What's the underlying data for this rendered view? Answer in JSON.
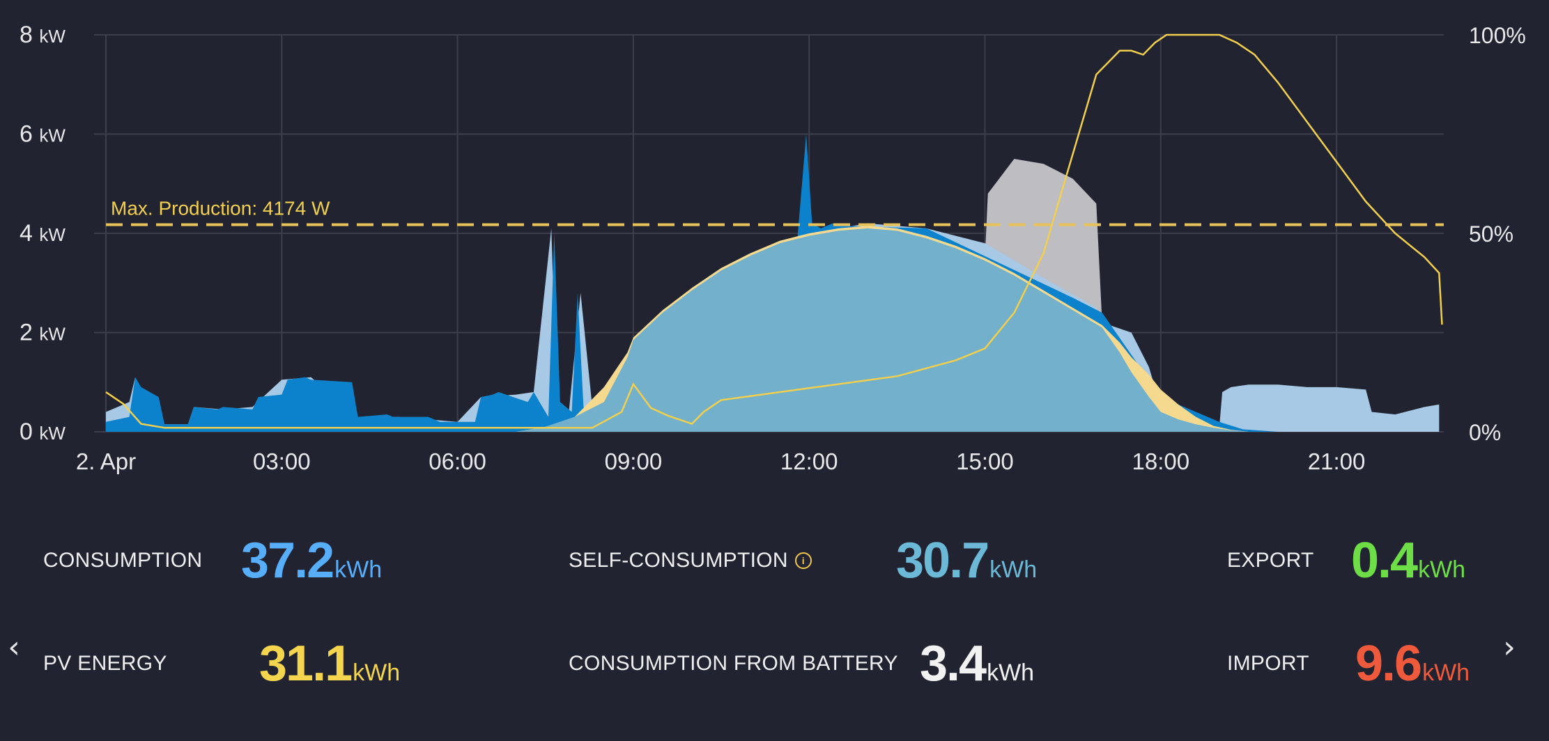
{
  "chart_data": {
    "type": "area",
    "title": "",
    "max_line": {
      "label": "Max. Production: 4174 W",
      "value": 4.174
    },
    "y_left": {
      "unit": "kW",
      "ticks": [
        0,
        2,
        4,
        6,
        8
      ],
      "labels": [
        "0",
        "2",
        "4",
        "6",
        "8"
      ],
      "ylim": [
        0,
        8
      ]
    },
    "y_right": {
      "ticks": [
        "0%",
        "50%",
        "100%"
      ],
      "ylim": [
        0,
        100
      ]
    },
    "x_ticks": [
      "2. Apr",
      "03:00",
      "06:00",
      "09:00",
      "12:00",
      "15:00",
      "18:00",
      "21:00"
    ],
    "x_tick_hours": [
      0,
      3,
      6,
      9,
      12,
      15,
      18,
      21
    ],
    "xlim_hours": [
      0,
      22.83
    ],
    "grid": true,
    "series": [
      {
        "key": "grid_import",
        "color": "#0c82cc",
        "hours": [
          0.0,
          0.4,
          0.5,
          0.6,
          0.75,
          0.9,
          1.0,
          1.4,
          1.5,
          1.9,
          2.0,
          2.5,
          2.6,
          3.0,
          3.1,
          3.4,
          3.5,
          4.2,
          4.3,
          4.8,
          4.9,
          5.5,
          5.7,
          6.3,
          6.4,
          6.6,
          6.7,
          7.2,
          7.3,
          7.5,
          7.55,
          7.65,
          7.75,
          7.95,
          8.05,
          8.15,
          8.3,
          8.5,
          8.7,
          9.0,
          9.5,
          10.0,
          11.0,
          11.8,
          11.95,
          12.05,
          12.2,
          12.4,
          12.6,
          14.0,
          16.5,
          17.0,
          18.0,
          19.0,
          19.4,
          20.0,
          21.0,
          22.0,
          22.75
        ],
        "kw": [
          0.2,
          0.3,
          1.1,
          0.9,
          0.8,
          0.7,
          0.15,
          0.15,
          0.5,
          0.45,
          0.5,
          0.45,
          0.7,
          0.75,
          1.05,
          1.1,
          1.05,
          1.0,
          0.3,
          0.35,
          0.3,
          0.3,
          0.2,
          0.2,
          0.7,
          0.75,
          0.8,
          0.6,
          0.8,
          0.4,
          0.3,
          4.0,
          0.6,
          0.4,
          2.8,
          0.5,
          0.3,
          0.3,
          0.5,
          1.0,
          2.3,
          2.7,
          3.3,
          3.9,
          6.0,
          4.2,
          4.1,
          4.2,
          4.15,
          4.1,
          2.7,
          2.4,
          0.7,
          0.2,
          0.05,
          0.0,
          0.0,
          0.0,
          0.0
        ]
      },
      {
        "key": "consumption",
        "color": "#a8c9e6",
        "hours": [
          0.0,
          0.2,
          0.4,
          0.5,
          0.55,
          0.7,
          1.0,
          1.4,
          1.5,
          2.0,
          2.5,
          3.0,
          3.5,
          4.3,
          5.0,
          6.0,
          6.4,
          7.0,
          7.3,
          7.6,
          7.7,
          7.9,
          8.1,
          8.3,
          8.5,
          9.0,
          9.5,
          10.0,
          10.5,
          11.0,
          12.0,
          13.0,
          14.0,
          15.0,
          16.0,
          16.9,
          17.0,
          17.5,
          17.8,
          18.0,
          18.5,
          19.0,
          19.05,
          19.2,
          19.5,
          20.0,
          20.5,
          21.0,
          21.5,
          21.6,
          22.0,
          22.5,
          22.75
        ],
        "kw": [
          0.4,
          0.5,
          0.6,
          1.1,
          0.9,
          0.8,
          0.15,
          0.15,
          0.5,
          0.45,
          0.5,
          1.05,
          1.1,
          0.3,
          0.3,
          0.2,
          0.7,
          0.75,
          0.8,
          4.1,
          0.5,
          0.4,
          2.8,
          0.5,
          0.4,
          1.2,
          2.4,
          2.9,
          3.3,
          3.6,
          4.0,
          4.2,
          4.1,
          3.8,
          3.1,
          2.5,
          2.2,
          2.0,
          1.3,
          0.5,
          0.2,
          0.1,
          0.8,
          0.9,
          0.95,
          0.95,
          0.9,
          0.9,
          0.85,
          0.4,
          0.35,
          0.5,
          0.55
        ]
      },
      {
        "key": "pv",
        "color": "#f5d98e",
        "hours": [
          0.0,
          7.0,
          7.5,
          8.0,
          8.5,
          8.9,
          9.0,
          9.5,
          10.0,
          10.5,
          11.0,
          11.5,
          12.0,
          12.5,
          13.0,
          13.5,
          14.0,
          14.5,
          15.0,
          15.5,
          16.0,
          16.5,
          17.0,
          17.3,
          17.5,
          17.8,
          18.0,
          18.3,
          18.6,
          18.9,
          19.2,
          19.5
        ],
        "kw": [
          0.0,
          0.0,
          0.1,
          0.3,
          0.9,
          1.6,
          1.9,
          2.45,
          2.9,
          3.3,
          3.6,
          3.85,
          4.0,
          4.1,
          4.15,
          4.1,
          3.95,
          3.75,
          3.5,
          3.2,
          2.85,
          2.5,
          2.15,
          1.8,
          1.5,
          1.15,
          0.85,
          0.55,
          0.3,
          0.12,
          0.04,
          0.0
        ]
      },
      {
        "key": "self_consumption",
        "color": "#6aaed0",
        "hours": [
          0.0,
          7.0,
          7.5,
          8.0,
          8.5,
          8.9,
          9.0,
          9.5,
          10.0,
          10.5,
          11.0,
          11.5,
          12.0,
          12.5,
          13.0,
          13.5,
          14.0,
          14.5,
          15.0,
          15.5,
          16.0,
          16.5,
          17.0,
          17.3,
          17.5,
          17.8,
          18.0,
          18.3,
          18.6,
          18.9,
          19.2,
          19.5
        ],
        "kw": [
          0.0,
          0.0,
          0.1,
          0.3,
          0.6,
          1.5,
          1.85,
          2.4,
          2.85,
          3.25,
          3.55,
          3.8,
          3.95,
          4.05,
          4.1,
          4.05,
          3.9,
          3.7,
          3.45,
          3.15,
          2.8,
          2.45,
          2.1,
          1.6,
          1.2,
          0.7,
          0.4,
          0.25,
          0.15,
          0.08,
          0.03,
          0.0
        ]
      },
      {
        "key": "battery_charge",
        "color": "#bdbdc2",
        "hours": [
          15.0,
          15.05,
          15.5,
          16.0,
          16.5,
          16.9,
          17.0
        ],
        "kw": [
          3.5,
          4.8,
          5.5,
          5.4,
          5.1,
          4.6,
          2.2
        ]
      },
      {
        "key": "battery_soc",
        "color": "#f2cf4d",
        "axis": "right",
        "hours": [
          0.0,
          0.1,
          0.3,
          0.6,
          1.0,
          7.5,
          8.3,
          8.8,
          9.0,
          9.3,
          9.6,
          10.0,
          10.2,
          10.5,
          11.0,
          11.5,
          12.0,
          12.5,
          13.0,
          13.5,
          14.0,
          14.5,
          15.0,
          15.5,
          16.0,
          16.3,
          16.6,
          16.9,
          17.3,
          17.5,
          17.7,
          17.9,
          18.1,
          18.3,
          18.6,
          19.0,
          19.3,
          19.6,
          20.0,
          20.5,
          21.0,
          21.5,
          22.0,
          22.5,
          22.75,
          22.8
        ],
        "pct": [
          10,
          9,
          7,
          2,
          1,
          1,
          1,
          5,
          12,
          6,
          4,
          2,
          5,
          8,
          9,
          10,
          11,
          12,
          13,
          14,
          16,
          18,
          21,
          30,
          45,
          60,
          75,
          90,
          96,
          96,
          95,
          98,
          100,
          100,
          100,
          100,
          98,
          95,
          88,
          78,
          68,
          58,
          50,
          44,
          40,
          27
        ]
      }
    ]
  },
  "stats": {
    "consumption": {
      "label": "CONSUMPTION",
      "value": "37.2",
      "unit": "kWh",
      "color": "#56aefc"
    },
    "self_consumption": {
      "label": "SELF-CONSUMPTION",
      "value": "30.7",
      "unit": "kWh",
      "color": "#6bb9d7"
    },
    "export": {
      "label": "EXPORT",
      "value": "0.4",
      "unit": "kWh",
      "color": "#6ede47"
    },
    "pv_energy": {
      "label": "PV ENERGY",
      "value": "31.1",
      "unit": "kWh",
      "color": "#f5d54e"
    },
    "battery": {
      "label": "CONSUMPTION FROM BATTERY",
      "value": "3.4",
      "unit": "kWh",
      "color": "#f2f2f2"
    },
    "import": {
      "label": "IMPORT",
      "value": "9.6",
      "unit": "kWh",
      "color": "#ef5a3c"
    }
  },
  "nav": {
    "prev_icon": "chevron-left-icon",
    "next_icon": "chevron-right-icon"
  }
}
